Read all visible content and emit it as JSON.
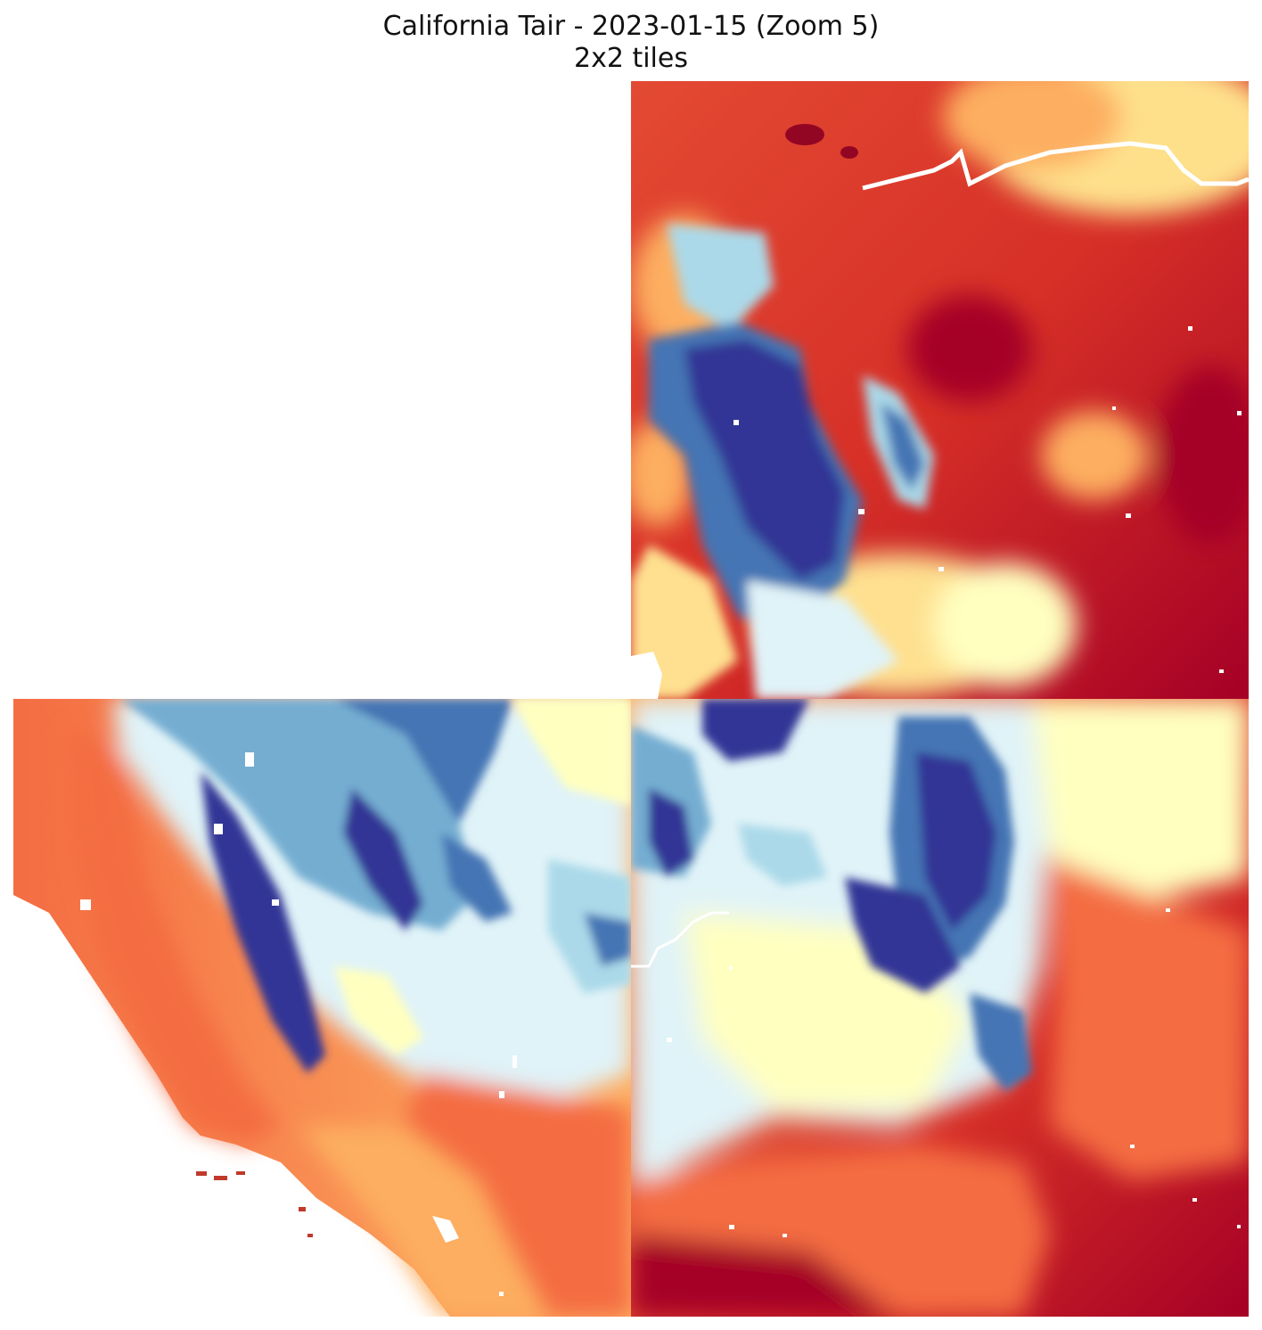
{
  "title": {
    "line1": "California Tair - 2023-01-15 (Zoom 5)",
    "line2": "2x2 tiles"
  },
  "map": {
    "variable": "Tair",
    "date": "2023-01-15",
    "zoom": 5,
    "grid": "2x2",
    "tiles_rendered": [
      "north-east",
      "south-west",
      "south-east"
    ],
    "tiles_missing": [
      "north-west"
    ],
    "colormap": [
      "#313695",
      "#4575b4",
      "#abd9e9",
      "#ffffbf",
      "#fdae61",
      "#d73027",
      "#a50026"
    ]
  }
}
